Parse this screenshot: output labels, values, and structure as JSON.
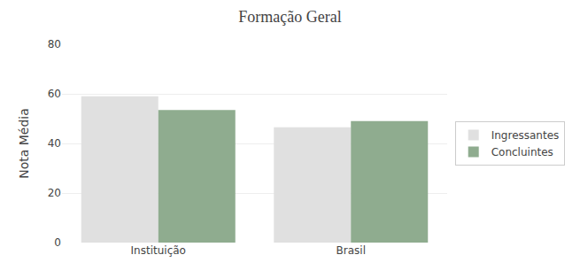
{
  "chart_data": {
    "type": "bar",
    "title": "Formação Geral",
    "ylabel": "Nota Média",
    "categories": [
      "Instituição",
      "Brasil"
    ],
    "series": [
      {
        "name": "Ingressantes",
        "color": "#e0e0e0",
        "values": [
          59,
          46.5
        ]
      },
      {
        "name": "Concluintes",
        "color": "#8fac8f",
        "values": [
          53.5,
          49
        ]
      }
    ],
    "ylim": [
      0,
      80
    ],
    "yticks": [
      0,
      20,
      40,
      60,
      80
    ],
    "grid": true,
    "legend": "right"
  }
}
